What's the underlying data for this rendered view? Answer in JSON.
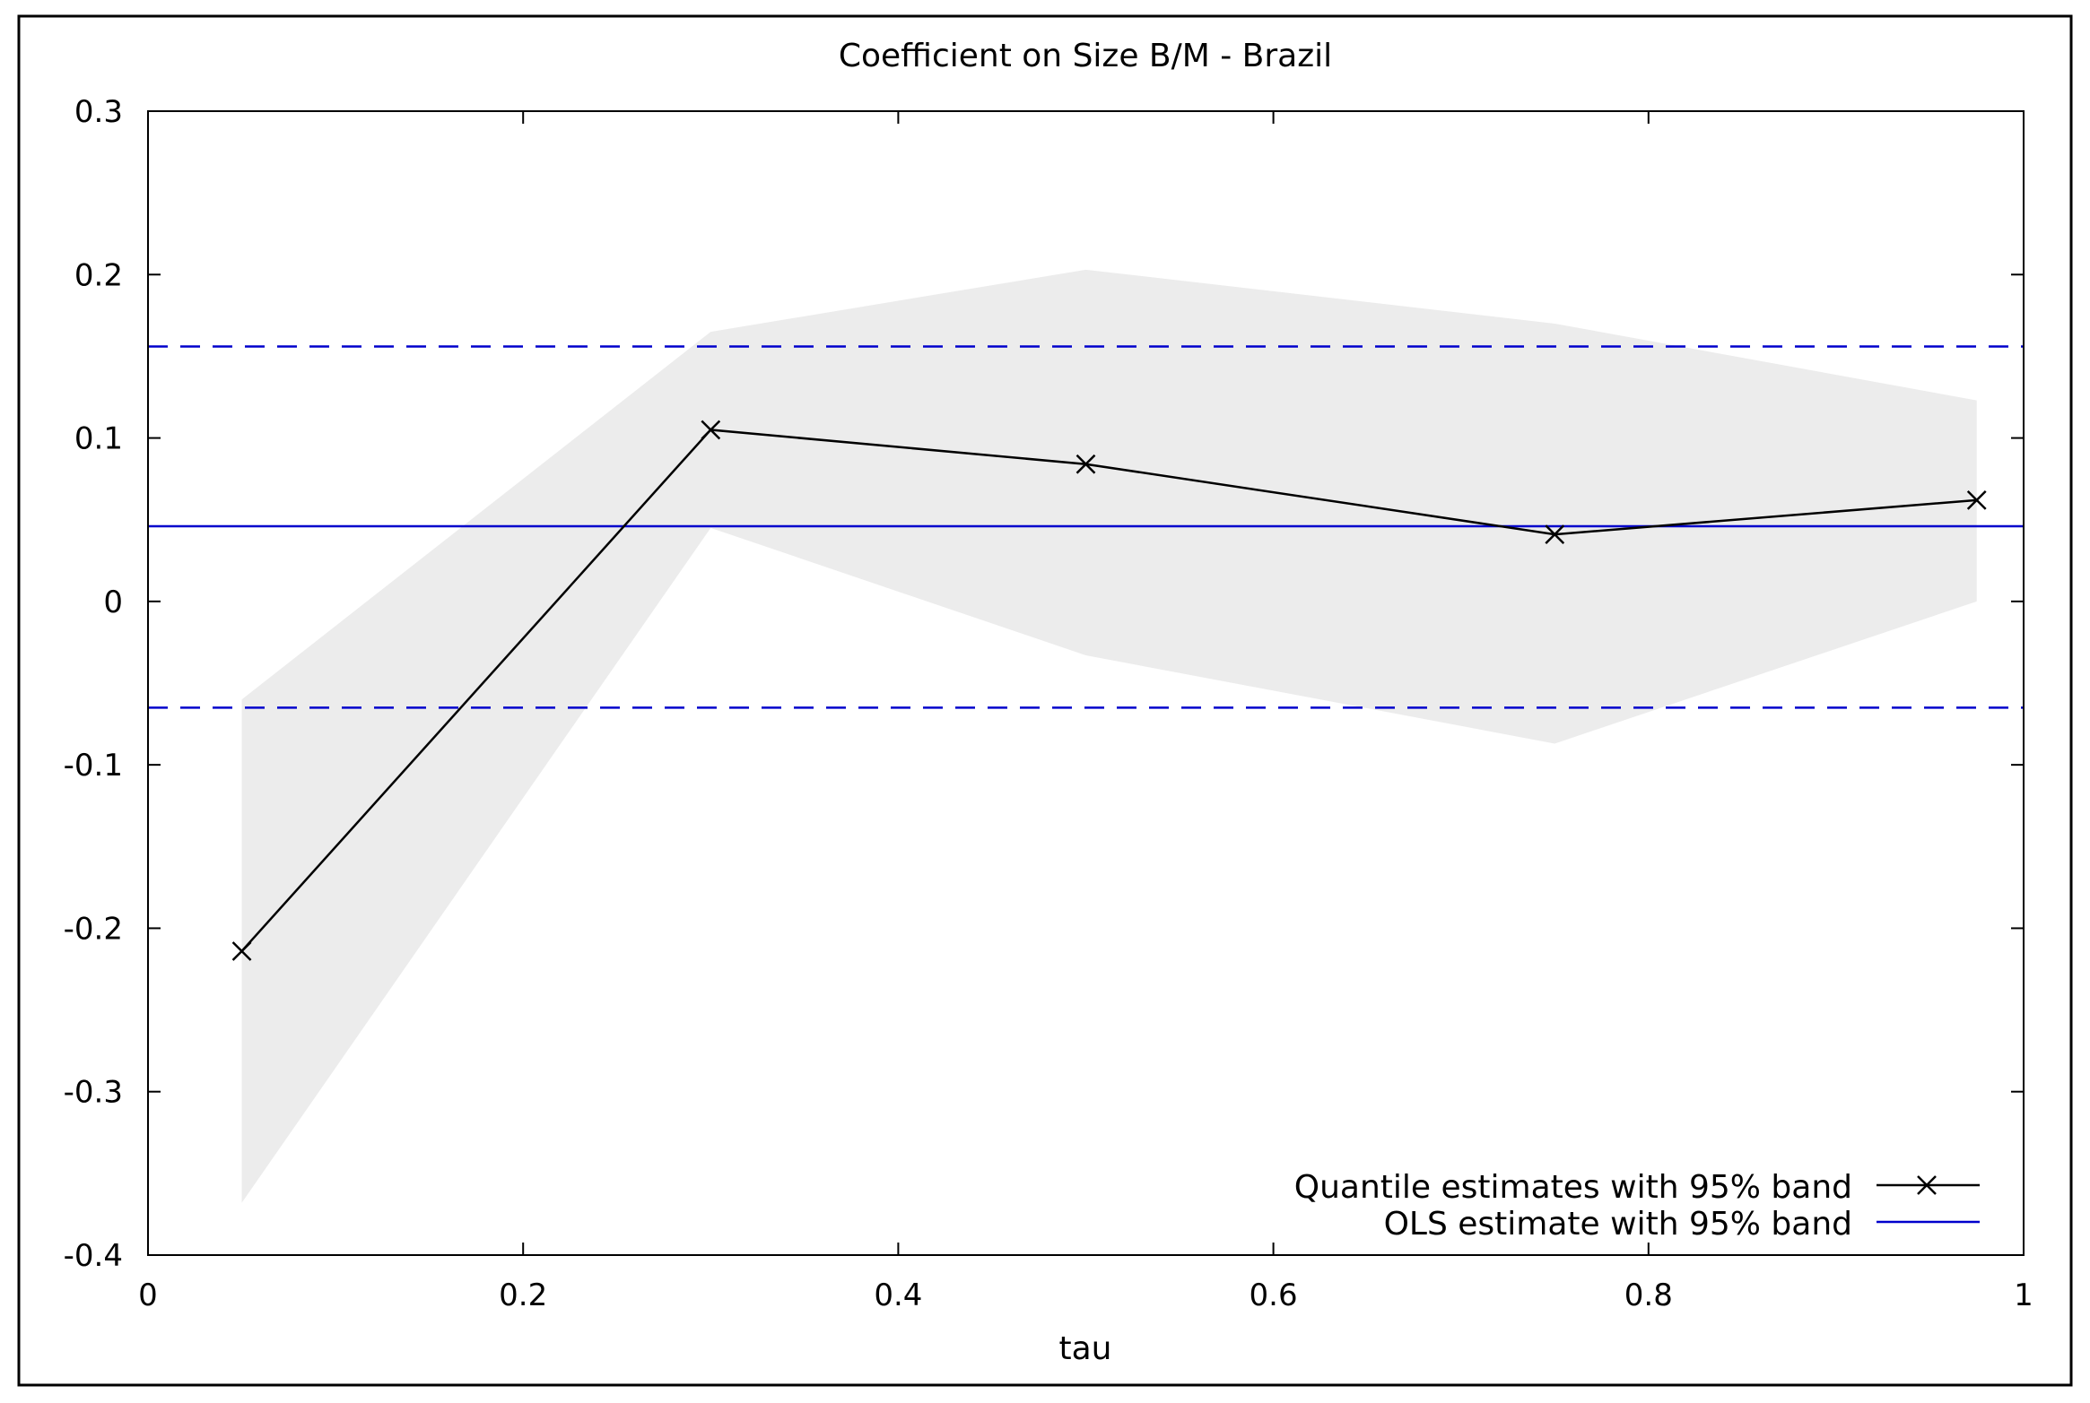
{
  "chart_data": {
    "type": "line",
    "title": "Coefficient on Size B/M - Brazil",
    "xlabel": "tau",
    "ylabel": "",
    "xlim": [
      0,
      1
    ],
    "ylim": [
      -0.4,
      0.3
    ],
    "x_ticks": [
      0,
      0.2,
      0.4,
      0.6,
      0.8,
      1
    ],
    "x_tick_labels": [
      "0",
      "0.2",
      "0.4",
      "0.6",
      "0.8",
      "1"
    ],
    "y_ticks": [
      -0.4,
      -0.3,
      -0.2,
      -0.1,
      0,
      0.1,
      0.2,
      0.3
    ],
    "y_tick_labels": [
      "-0.4",
      "-0.3",
      "-0.2",
      "-0.1",
      "0",
      "0.1",
      "0.2",
      "0.3"
    ],
    "grid": false,
    "legend_position": "bottom-right",
    "series": [
      {
        "name": "Quantile estimates with 95% band",
        "x": [
          0.05,
          0.3,
          0.5,
          0.75,
          0.975
        ],
        "values": [
          -0.214,
          0.105,
          0.084,
          0.041,
          0.062
        ],
        "band_lower": [
          -0.368,
          0.045,
          -0.033,
          -0.087,
          0.0
        ],
        "band_upper": [
          -0.06,
          0.165,
          0.203,
          0.17,
          0.123
        ],
        "color": "#000000",
        "band_color": "#ececec",
        "marker": "x"
      },
      {
        "name": "OLS estimate with 95% band",
        "value": 0.046,
        "band_lower": -0.065,
        "band_upper": 0.156,
        "color": "#0000cc"
      }
    ]
  }
}
